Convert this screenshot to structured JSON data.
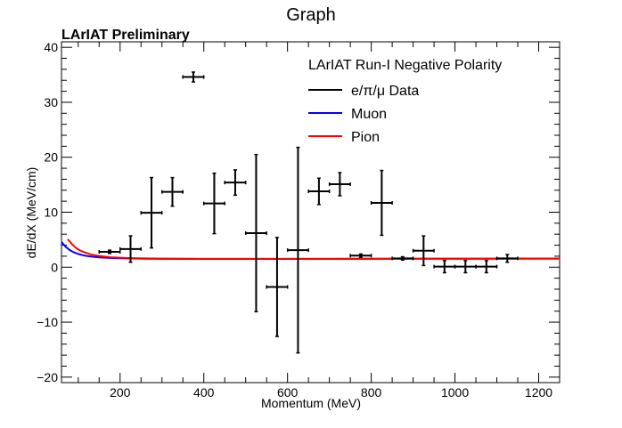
{
  "colors": {
    "data": "#000000",
    "muon": "#0000ff",
    "pion": "#ff0000"
  },
  "chart_data": {
    "type": "scatter",
    "title": "Graph",
    "subtitle": "LArIAT Preliminary",
    "xlabel": "Momentum (MeV)",
    "ylabel": "dE/dX (MeV/cm)",
    "xlim": [
      60,
      1250
    ],
    "ylim": [
      -21,
      41
    ],
    "x_ticks": [
      200,
      400,
      600,
      800,
      1000,
      1200
    ],
    "y_ticks": [
      -20,
      -10,
      0,
      10,
      20,
      30,
      40
    ],
    "grid": false,
    "legend": {
      "position": "top-right",
      "header": "LArIAT Run-I Negative Polarity",
      "entries": [
        {
          "key": "data",
          "label": "e/π/μ Data"
        },
        {
          "key": "muon",
          "label": "Muon"
        },
        {
          "key": "pion",
          "label": "Pion"
        }
      ]
    },
    "series": [
      {
        "name": "e/π/μ Data",
        "kind": "errorbars",
        "color_key": "data",
        "points": [
          {
            "x": 175,
            "y": 2.8,
            "xerr": 25,
            "yerr": 0.3
          },
          {
            "x": 225,
            "y": 3.3,
            "xerr": 25,
            "yerr": 2.4
          },
          {
            "x": 275,
            "y": 9.9,
            "xerr": 25,
            "yerr": 6.4
          },
          {
            "x": 325,
            "y": 13.7,
            "xerr": 25,
            "yerr": 2.6
          },
          {
            "x": 375,
            "y": 34.6,
            "xerr": 25,
            "yerr": 0.9
          },
          {
            "x": 425,
            "y": 11.6,
            "xerr": 25,
            "yerr": 5.5
          },
          {
            "x": 475,
            "y": 15.4,
            "xerr": 25,
            "yerr": 2.3
          },
          {
            "x": 525,
            "y": 6.2,
            "xerr": 25,
            "yerr": 14.3
          },
          {
            "x": 575,
            "y": -3.6,
            "xerr": 25,
            "yerr": 9.0
          },
          {
            "x": 625,
            "y": 3.1,
            "xerr": 25,
            "yerr": 18.7
          },
          {
            "x": 675,
            "y": 13.8,
            "xerr": 25,
            "yerr": 2.4
          },
          {
            "x": 725,
            "y": 15.1,
            "xerr": 25,
            "yerr": 2.1
          },
          {
            "x": 775,
            "y": 2.1,
            "xerr": 25,
            "yerr": 0.3
          },
          {
            "x": 825,
            "y": 11.7,
            "xerr": 25,
            "yerr": 5.9
          },
          {
            "x": 875,
            "y": 1.6,
            "xerr": 25,
            "yerr": 0.3
          },
          {
            "x": 925,
            "y": 3.0,
            "xerr": 25,
            "yerr": 2.7
          },
          {
            "x": 975,
            "y": 0.1,
            "xerr": 25,
            "yerr": 1.1
          },
          {
            "x": 1025,
            "y": 0.1,
            "xerr": 25,
            "yerr": 1.1
          },
          {
            "x": 1075,
            "y": 0.1,
            "xerr": 25,
            "yerr": 1.1
          },
          {
            "x": 1125,
            "y": 1.6,
            "xerr": 25,
            "yerr": 0.7
          }
        ]
      },
      {
        "name": "Muon",
        "kind": "line",
        "color_key": "muon",
        "x": [
          60,
          70,
          80,
          90,
          100,
          110,
          120,
          135,
          150,
          170,
          190,
          220,
          260,
          300,
          400,
          500,
          600,
          700,
          800,
          900,
          1000,
          1100,
          1200,
          1250
        ],
        "y": [
          4.6,
          3.7,
          3.1,
          2.7,
          2.4,
          2.2,
          2.05,
          1.9,
          1.8,
          1.7,
          1.65,
          1.6,
          1.55,
          1.52,
          1.5,
          1.5,
          1.5,
          1.51,
          1.52,
          1.53,
          1.54,
          1.55,
          1.56,
          1.56
        ]
      },
      {
        "name": "Pion",
        "kind": "line",
        "color_key": "pion",
        "x": [
          75,
          85,
          95,
          105,
          115,
          130,
          145,
          160,
          180,
          200,
          230,
          260,
          300,
          400,
          500,
          600,
          700,
          800,
          900,
          1000,
          1100,
          1200,
          1250
        ],
        "y": [
          5.1,
          4.2,
          3.5,
          3.0,
          2.7,
          2.35,
          2.1,
          1.95,
          1.8,
          1.72,
          1.65,
          1.6,
          1.56,
          1.52,
          1.51,
          1.51,
          1.52,
          1.53,
          1.54,
          1.55,
          1.56,
          1.57,
          1.57
        ]
      }
    ]
  }
}
